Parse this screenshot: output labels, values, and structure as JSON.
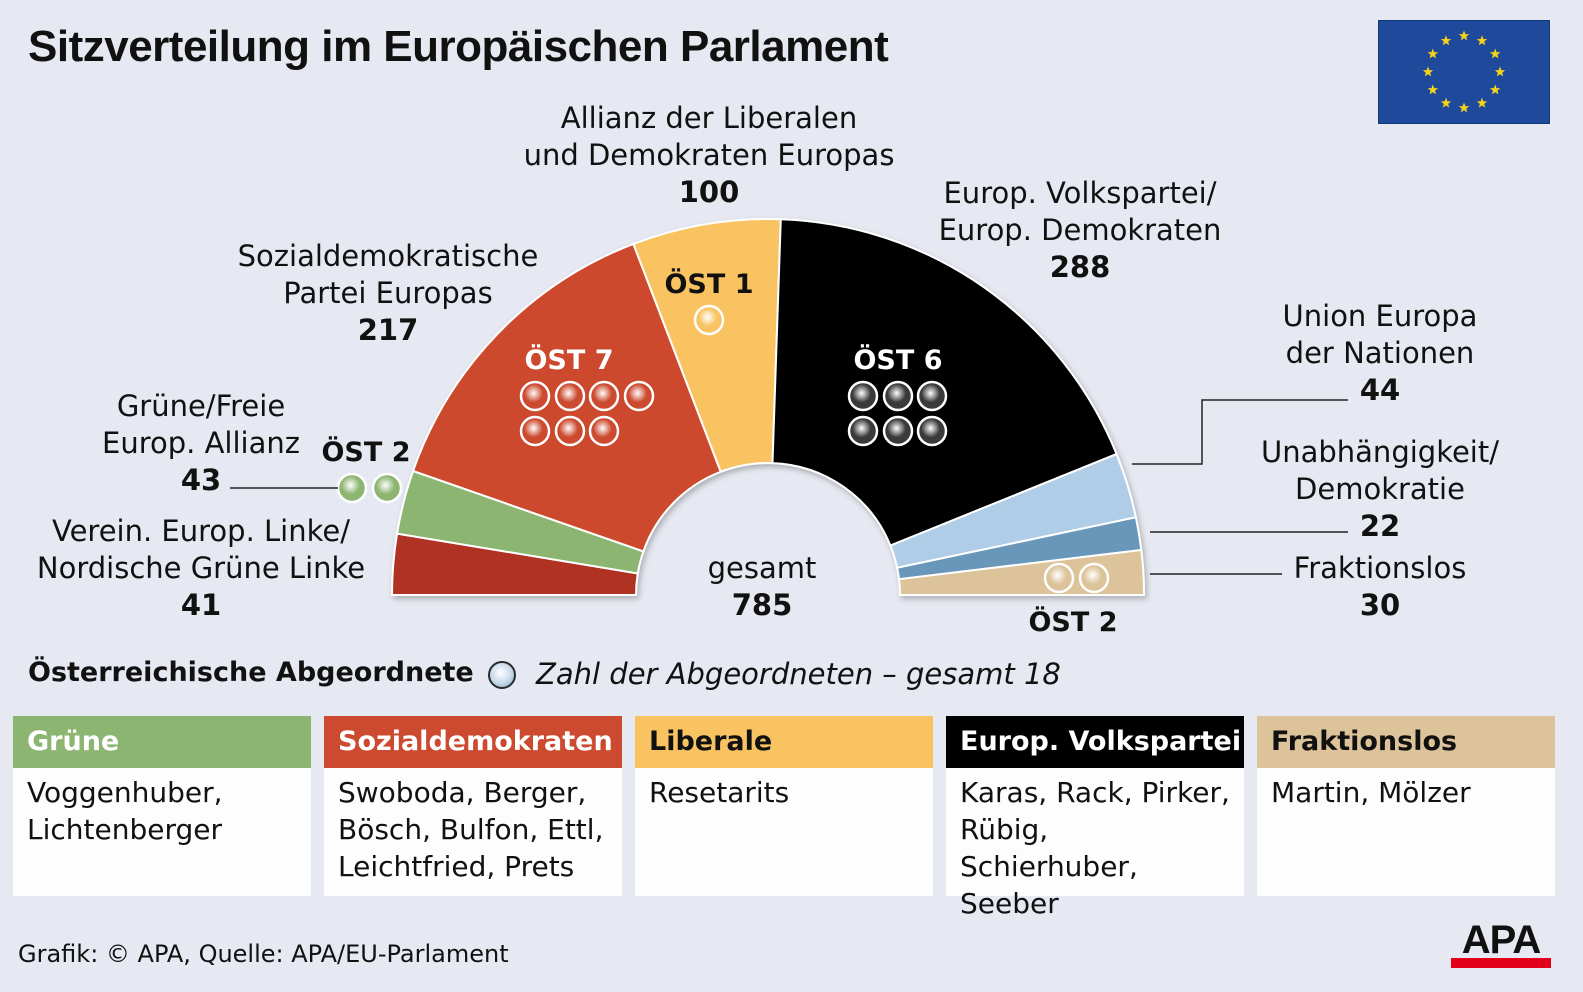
{
  "title": "Sitzverteilung im Europäischen Parlament",
  "chart_data": {
    "type": "pie",
    "variant": "hemicycle",
    "title": "Sitzverteilung im Europäischen Parlament",
    "total_label": "gesamt",
    "total": 785,
    "groups": [
      {
        "name_lines": [
          "Verein. Europ. Linke/",
          "Nordische Grüne Linke"
        ],
        "seats": 41,
        "color": "#b03322",
        "austrian": 0,
        "austrian_label": "",
        "dot_color": ""
      },
      {
        "name_lines": [
          "Grüne/Freie",
          "Europ. Allianz"
        ],
        "seats": 43,
        "color": "#8db572",
        "austrian": 2,
        "austrian_label": "ÖST 2",
        "dot_color": "#8db572"
      },
      {
        "name_lines": [
          "Sozialdemokratische",
          "Partei Europas"
        ],
        "seats": 217,
        "color": "#cc4a2f",
        "austrian": 7,
        "austrian_label": "ÖST 7",
        "dot_color": "#cc4a2f"
      },
      {
        "name_lines": [
          "Allianz der Liberalen",
          "und Demokraten Europas"
        ],
        "seats": 100,
        "color": "#f9c362",
        "austrian": 1,
        "austrian_label": "ÖST 1",
        "dot_color": "#f9c362"
      },
      {
        "name_lines": [
          "Europ. Volkspartei/",
          "Europ. Demokraten"
        ],
        "seats": 288,
        "color": "#000000",
        "austrian": 6,
        "austrian_label": "ÖST 6",
        "dot_color": "#3a3a3a"
      },
      {
        "name_lines": [
          "Union Europa",
          "der Nationen"
        ],
        "seats": 44,
        "color": "#afcde6",
        "austrian": 0,
        "austrian_label": "",
        "dot_color": ""
      },
      {
        "name_lines": [
          "Unabhängigkeit/",
          "Demokratie"
        ],
        "seats": 22,
        "color": "#6897ba",
        "austrian": 0,
        "austrian_label": "",
        "dot_color": ""
      },
      {
        "name_lines": [
          "Fraktionslos"
        ],
        "seats": 30,
        "color": "#dcc399",
        "austrian": 2,
        "austrian_label": "ÖST 2",
        "dot_color": "#dcc399"
      }
    ]
  },
  "legend": {
    "title": "Österreichische Abgeordnete",
    "note": "Zahl der Abgeordneten – gesamt 18"
  },
  "cards": [
    {
      "head": "Grüne",
      "body": "Voggenhuber,\nLichtenberger",
      "head_bg": "#8db572",
      "head_color": "#ffffff"
    },
    {
      "head": "Sozialdemokraten",
      "body": "Swoboda, Berger,\nBösch, Bulfon, Ettl,\nLeichtfried, Prets",
      "head_bg": "#cc4a2f",
      "head_color": "#ffffff"
    },
    {
      "head": "Liberale",
      "body": "Resetarits",
      "head_bg": "#f9c362",
      "head_color": "#111111"
    },
    {
      "head": "Europ. Volkspartei",
      "body": "Karas, Rack, Pirker,\nRübig, Schierhuber,\nSeeber",
      "head_bg": "#000000",
      "head_color": "#ffffff"
    },
    {
      "head": "Fraktionslos",
      "body": "Martin, Mölzer",
      "head_bg": "#dcc399",
      "head_color": "#111111"
    }
  ],
  "footer": {
    "source": "Grafik: © APA, Quelle: APA/EU-Parlament",
    "logo_text": "APA"
  },
  "flag": {
    "background": "#1f4a9c",
    "star_color": "#f2d21b",
    "stars": 12
  }
}
